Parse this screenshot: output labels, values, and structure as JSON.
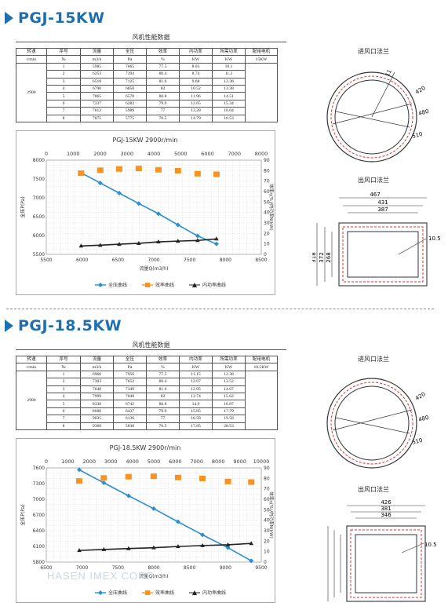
{
  "sections": [
    {
      "model": "PGJ-15KW",
      "table_title": "风机性能数据",
      "headers": [
        "转速",
        "序号",
        "流量",
        "全压",
        "效率",
        "内功率",
        "所需功率",
        "配用电机"
      ],
      "units": [
        "r/min",
        "№",
        "m3/h",
        "Pa",
        "%",
        "KW",
        "KW",
        "15KW"
      ],
      "speed": "2900",
      "rows": [
        [
          "1",
          "5985",
          "7665",
          "77.5",
          "8.03",
          "10.1"
        ],
        [
          "2",
          "6253",
          "7394",
          "80.4",
          "8.74",
          "11.2"
        ],
        [
          "3",
          "6518",
          "7125",
          "81.6",
          "9.68",
          "12.38"
        ],
        [
          "4",
          "6790",
          "6850",
          "82",
          "10.52",
          "13.38"
        ],
        [
          "5",
          "7065",
          "6578",
          "80.8",
          "11.96",
          "14.51"
        ],
        [
          "6",
          "7337",
          "6282",
          "79.9",
          "12.65",
          "15.34"
        ],
        [
          "7",
          "7612",
          "5989",
          "77",
          "13.28",
          "16.04"
        ],
        [
          "8",
          "7875",
          "5775",
          "76.5",
          "14.79",
          "16.53"
        ]
      ],
      "inlet_label": "进风口法兰",
      "outlet_label": "出风口法兰",
      "inlet_dims": [
        "11",
        "420",
        "480",
        "510"
      ],
      "outlet_dims": [
        "467",
        "431",
        "387",
        "318",
        "372",
        "268",
        "10.5"
      ]
    },
    {
      "model": "PGJ-18.5KW",
      "table_title": "风机性能数据",
      "headers": [
        "转速",
        "序号",
        "流量",
        "全压",
        "效率",
        "内功率",
        "所需功率",
        "配用电机"
      ],
      "units": [
        "r/min",
        "№",
        "m3/h",
        "Pa",
        "%",
        "KW",
        "KW",
        "18.5KW"
      ],
      "speed": "2900",
      "rows": [
        [
          "1",
          "6960",
          "7956",
          "77.5",
          "11.15",
          "12.38"
        ],
        [
          "2",
          "7303",
          "7652",
          "80.4",
          "12.07",
          "13.52"
        ],
        [
          "3",
          "7648",
          "7349",
          "81.6",
          "12.95",
          "14.67"
        ],
        [
          "4",
          "7999",
          "7048",
          "82",
          "13.74",
          "15.62"
        ],
        [
          "5",
          "8338",
          "6742",
          "80.8",
          "14.9",
          "16.87"
        ],
        [
          "6",
          "8680",
          "6437",
          "79.9",
          "15.85",
          "17.79"
        ],
        [
          "7",
          "9035",
          "6136",
          "77",
          "16.58",
          "19.58"
        ],
        [
          "8",
          "9360",
          "5830",
          "76.5",
          "17.85",
          "20.53"
        ]
      ],
      "inlet_label": "进风口法兰",
      "outlet_label": "出风口法兰",
      "inlet_dims": [
        "420",
        "480",
        "510"
      ],
      "outlet_dims": [
        "426",
        "381",
        "346",
        "10.5"
      ]
    }
  ],
  "chart_data": [
    {
      "type": "line",
      "title": "PGJ-15KW 2900r/min",
      "xlabel": "流量Q(m3/h)",
      "ylabel": "全压P(Pa)",
      "y2label": "效率η(%)/内功率N(kW)",
      "xlim": [
        5500,
        8500
      ],
      "x_ticks": [
        "5500",
        "6000",
        "6500",
        "7000",
        "7500",
        "8000",
        "8500"
      ],
      "top_xlim": [
        0,
        8000
      ],
      "top_ticks": [
        "0",
        "1000",
        "2000",
        "3000",
        "4000",
        "5000",
        "6000",
        "7000",
        "8000"
      ],
      "ylim": [
        5500,
        8000
      ],
      "y_ticks": [
        "5500",
        "6000",
        "6500",
        "7000",
        "7500",
        "8000"
      ],
      "y2lim": [
        0,
        90
      ],
      "y2_ticks": [
        "0",
        "10",
        "20",
        "30",
        "40",
        "50",
        "60",
        "70",
        "80",
        "90"
      ],
      "grid": true,
      "legend": "bottom",
      "series": [
        {
          "name": "全压曲线",
          "axis": "left",
          "color": "#2a8fd0",
          "marker": "diamond",
          "x": [
            5985,
            6253,
            6518,
            6790,
            7065,
            7337,
            7612,
            7875
          ],
          "y": [
            7665,
            7394,
            7125,
            6850,
            6578,
            6282,
            5989,
            5775
          ]
        },
        {
          "name": "效率曲线",
          "axis": "right",
          "color": "#f7931e",
          "marker": "square",
          "x": [
            5985,
            6253,
            6518,
            6790,
            7065,
            7337,
            7612,
            7875
          ],
          "y": [
            77.5,
            80.4,
            81.6,
            82,
            80.8,
            79.9,
            77,
            76.5
          ]
        },
        {
          "name": "内功率曲线",
          "axis": "right",
          "color": "#222222",
          "marker": "triangle",
          "x": [
            5985,
            6253,
            6518,
            6790,
            7065,
            7337,
            7612,
            7875
          ],
          "y": [
            8.03,
            8.74,
            9.68,
            10.52,
            11.96,
            12.65,
            13.28,
            14.79
          ]
        }
      ]
    },
    {
      "type": "line",
      "title": "PGJ-18.5KW 2900r/min",
      "xlabel": "流量Q(m3/h)",
      "ylabel": "全压P(Pa)",
      "y2label": "效率η(%)/内功率N(kW)",
      "xlim": [
        6500,
        9500
      ],
      "x_ticks": [
        "6500",
        "7000",
        "7500",
        "8000",
        "8500",
        "9000",
        "9500"
      ],
      "top_xlim": [
        0,
        10000
      ],
      "top_ticks": [
        "0",
        "1000",
        "2000",
        "3000",
        "4000",
        "5000",
        "6000",
        "7000",
        "8000",
        "9000",
        "10000"
      ],
      "ylim": [
        5800,
        8000
      ],
      "y_ticks": [
        "5800",
        "6100",
        "6400",
        "6700",
        "7000",
        "7300",
        "7600"
      ],
      "y2lim": [
        0,
        90
      ],
      "y2_ticks": [
        "0",
        "10",
        "20",
        "30",
        "40",
        "50",
        "60",
        "70",
        "80",
        "90"
      ],
      "grid": true,
      "legend": "bottom",
      "series": [
        {
          "name": "全压曲线",
          "axis": "left",
          "color": "#2a8fd0",
          "marker": "diamond",
          "x": [
            6960,
            7303,
            7648,
            7999,
            8338,
            8680,
            9035,
            9360
          ],
          "y": [
            7956,
            7652,
            7349,
            7048,
            6742,
            6437,
            6136,
            5830
          ]
        },
        {
          "name": "效率曲线",
          "axis": "right",
          "color": "#f7931e",
          "marker": "square",
          "x": [
            6960,
            7303,
            7648,
            7999,
            8338,
            8680,
            9035,
            9360
          ],
          "y": [
            77.5,
            80.4,
            81.6,
            82,
            80.8,
            79.9,
            77,
            76.5
          ]
        },
        {
          "name": "内功率曲线",
          "axis": "right",
          "color": "#222222",
          "marker": "triangle",
          "x": [
            6960,
            7303,
            7648,
            7999,
            8338,
            8680,
            9035,
            9360
          ],
          "y": [
            11.15,
            12.07,
            12.95,
            13.74,
            14.9,
            15.85,
            16.58,
            17.85
          ]
        }
      ]
    }
  ],
  "watermark": "HASEN IMEX CORP"
}
